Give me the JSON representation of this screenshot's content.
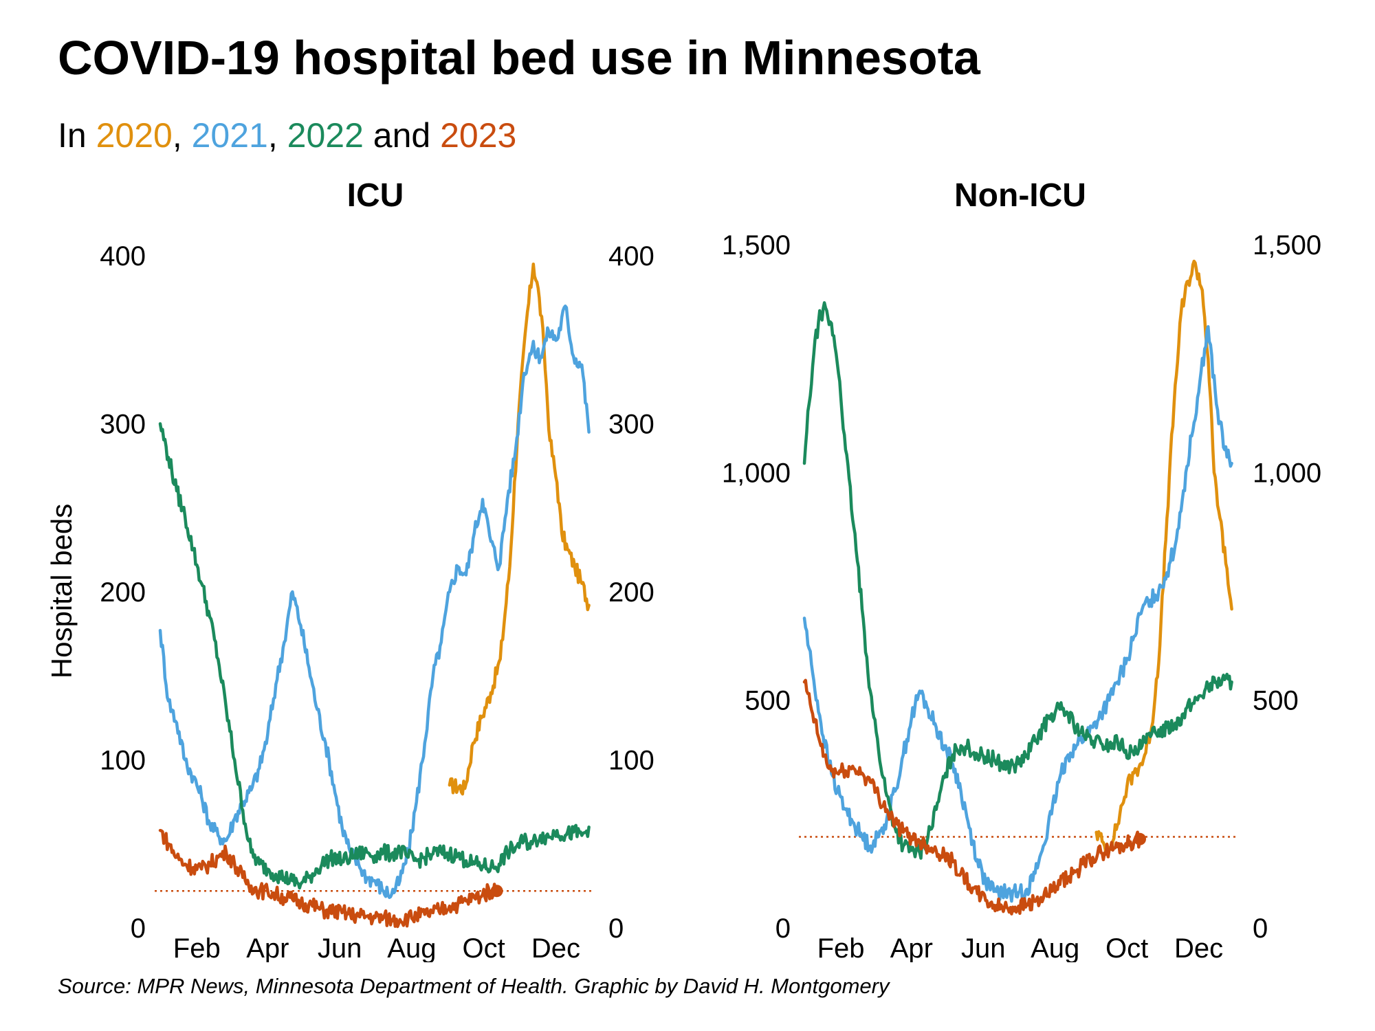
{
  "title": "COVID-19 hospital bed use in Minnesota",
  "subtitle": {
    "prefix": "In ",
    "sep1": ", ",
    "sep2": ", ",
    "and_text": " and ",
    "year_2020": "2020",
    "year_2021": "2021",
    "year_2022": "2022",
    "year_2023": "2023"
  },
  "source": "Source: MPR News, Minnesota Department of Health. Graphic by David H. Montgomery",
  "colors": {
    "2020": "#E0900E",
    "2021": "#4EA3DE",
    "2022": "#1B8A5C",
    "2023": "#C94C0F"
  },
  "chart_data": [
    {
      "type": "line",
      "title": "ICU",
      "ylabel": "Hospital beds",
      "ylim": [
        0,
        400
      ],
      "yticks": [
        0,
        100,
        200,
        300,
        400
      ],
      "ytick_labels": [
        "0",
        "100",
        "200",
        "300",
        "400"
      ],
      "xlim": [
        0,
        365
      ],
      "xticks": [
        {
          "day": 31,
          "label": "Feb"
        },
        {
          "day": 91,
          "label": "Apr"
        },
        {
          "day": 152,
          "label": "Jun"
        },
        {
          "day": 213,
          "label": "Aug"
        },
        {
          "day": 274,
          "label": "Oct"
        },
        {
          "day": 335,
          "label": "Dec"
        }
      ],
      "reference_line": {
        "value": 22,
        "color": "#C94C0F"
      },
      "series": [
        {
          "name": "2020",
          "x": [
            245,
            258,
            265,
            272,
            280,
            288,
            296,
            303,
            310,
            316,
            321,
            325,
            330,
            336,
            340,
            345,
            351,
            357,
            363
          ],
          "y": [
            85,
            83,
            110,
            125,
            140,
            160,
            215,
            300,
            360,
            395,
            375,
            345,
            290,
            265,
            235,
            225,
            215,
            205,
            192
          ]
        },
        {
          "name": "2021",
          "x": [
            0,
            7,
            14,
            21,
            28,
            35,
            42,
            49,
            56,
            63,
            70,
            77,
            84,
            91,
            98,
            105,
            112,
            119,
            126,
            133,
            140,
            147,
            154,
            161,
            168,
            175,
            182,
            189,
            196,
            203,
            210,
            217,
            224,
            231,
            238,
            245,
            252,
            259,
            266,
            273,
            280,
            287,
            294,
            301,
            308,
            315,
            322,
            329,
            336,
            343,
            350,
            357,
            363
          ],
          "y": [
            177,
            135,
            122,
            100,
            90,
            78,
            62,
            55,
            52,
            65,
            75,
            82,
            95,
            115,
            145,
            170,
            200,
            180,
            155,
            130,
            110,
            85,
            60,
            45,
            38,
            30,
            28,
            22,
            20,
            28,
            45,
            75,
            110,
            150,
            170,
            200,
            215,
            210,
            235,
            255,
            230,
            215,
            255,
            285,
            330,
            345,
            340,
            355,
            350,
            370,
            340,
            335,
            295
          ]
        },
        {
          "name": "2022",
          "x": [
            0,
            7,
            14,
            21,
            28,
            35,
            42,
            49,
            56,
            63,
            70,
            77,
            84,
            91,
            98,
            105,
            112,
            119,
            126,
            133,
            140,
            147,
            154,
            161,
            168,
            175,
            182,
            189,
            196,
            203,
            210,
            217,
            224,
            231,
            238,
            245,
            252,
            259,
            266,
            273,
            280,
            287,
            294,
            301,
            308,
            315,
            322,
            329,
            336,
            343,
            350,
            357,
            363
          ],
          "y": [
            300,
            280,
            260,
            245,
            225,
            205,
            185,
            160,
            130,
            100,
            70,
            45,
            38,
            35,
            32,
            30,
            28,
            26,
            30,
            35,
            40,
            42,
            40,
            42,
            44,
            45,
            43,
            45,
            44,
            46,
            42,
            40,
            42,
            44,
            45,
            44,
            43,
            40,
            38,
            37,
            36,
            38,
            45,
            48,
            52,
            50,
            55,
            54,
            58,
            55,
            57,
            55,
            60
          ]
        },
        {
          "name": "2023",
          "x": [
            0,
            7,
            14,
            21,
            28,
            35,
            42,
            49,
            56,
            63,
            70,
            77,
            84,
            91,
            98,
            105,
            112,
            119,
            126,
            133,
            140,
            147,
            154,
            161,
            168,
            175,
            182,
            189,
            196,
            203,
            210,
            217,
            224,
            231,
            238,
            245,
            252,
            259,
            266,
            273,
            280,
            285
          ],
          "y": [
            58,
            50,
            42,
            38,
            36,
            35,
            38,
            42,
            45,
            38,
            30,
            25,
            22,
            22,
            20,
            18,
            17,
            15,
            14,
            12,
            10,
            10,
            9,
            8,
            7,
            7,
            6,
            6,
            5,
            5,
            6,
            7,
            8,
            9,
            11,
            13,
            14,
            16,
            18,
            20,
            22,
            22
          ]
        }
      ]
    },
    {
      "type": "line",
      "title": "Non-ICU",
      "ylabel": "",
      "ylim": [
        0,
        1500
      ],
      "yticks": [
        0,
        500,
        1000,
        1500
      ],
      "ytick_labels": [
        "0",
        "500",
        "1,000",
        "1,500"
      ],
      "xlim": [
        0,
        365
      ],
      "xticks": [
        {
          "day": 31,
          "label": "Feb"
        },
        {
          "day": 91,
          "label": "Apr"
        },
        {
          "day": 152,
          "label": "Jun"
        },
        {
          "day": 213,
          "label": "Aug"
        },
        {
          "day": 274,
          "label": "Oct"
        },
        {
          "day": 335,
          "label": "Dec"
        }
      ],
      "reference_line": {
        "value": 200,
        "color": "#C94C0F"
      },
      "series": [
        {
          "name": "2020",
          "x": [
            248,
            255,
            262,
            268,
            274,
            280,
            288,
            295,
            302,
            308,
            314,
            320,
            326,
            332,
            338,
            343,
            348,
            353,
            358,
            363
          ],
          "y": [
            210,
            180,
            190,
            250,
            310,
            340,
            370,
            440,
            620,
            900,
            1150,
            1350,
            1420,
            1460,
            1400,
            1250,
            1000,
            900,
            800,
            700
          ]
        },
        {
          "name": "2021",
          "x": [
            0,
            7,
            14,
            21,
            28,
            35,
            42,
            49,
            56,
            63,
            70,
            77,
            84,
            91,
            98,
            105,
            112,
            119,
            126,
            133,
            140,
            147,
            154,
            161,
            168,
            175,
            182,
            189,
            196,
            203,
            210,
            217,
            224,
            231,
            238,
            245,
            252,
            259,
            266,
            273,
            280,
            287,
            294,
            301,
            308,
            315,
            322,
            329,
            336,
            343,
            350,
            357,
            363
          ],
          "y": [
            680,
            560,
            450,
            360,
            300,
            260,
            230,
            200,
            180,
            200,
            240,
            300,
            380,
            460,
            520,
            480,
            440,
            400,
            360,
            300,
            220,
            150,
            100,
            80,
            78,
            75,
            78,
            85,
            120,
            180,
            250,
            330,
            380,
            400,
            420,
            440,
            470,
            500,
            540,
            580,
            640,
            700,
            720,
            740,
            780,
            840,
            960,
            1080,
            1200,
            1320,
            1150,
            1050,
            1020
          ]
        },
        {
          "name": "2022",
          "x": [
            0,
            4,
            8,
            12,
            16,
            20,
            25,
            30,
            35,
            42,
            49,
            56,
            63,
            70,
            77,
            84,
            91,
            98,
            105,
            112,
            119,
            126,
            133,
            140,
            147,
            154,
            161,
            168,
            175,
            182,
            189,
            196,
            203,
            210,
            217,
            224,
            231,
            238,
            245,
            252,
            259,
            266,
            273,
            280,
            287,
            294,
            301,
            308,
            315,
            322,
            329,
            336,
            343,
            350,
            357,
            363
          ],
          "y": [
            1020,
            1150,
            1260,
            1330,
            1360,
            1340,
            1300,
            1200,
            1050,
            880,
            700,
            520,
            390,
            290,
            220,
            180,
            170,
            165,
            200,
            260,
            330,
            380,
            400,
            395,
            380,
            375,
            370,
            360,
            355,
            360,
            380,
            410,
            440,
            470,
            480,
            470,
            440,
            420,
            410,
            405,
            400,
            410,
            390,
            380,
            400,
            420,
            435,
            440,
            450,
            470,
            490,
            510,
            530,
            540,
            545,
            540
          ]
        },
        {
          "name": "2023",
          "x": [
            0,
            7,
            14,
            21,
            28,
            35,
            42,
            49,
            56,
            63,
            70,
            77,
            84,
            91,
            98,
            105,
            112,
            119,
            126,
            133,
            140,
            147,
            154,
            161,
            168,
            175,
            182,
            189,
            196,
            203,
            210,
            217,
            224,
            231,
            238,
            245,
            252,
            259,
            266,
            273,
            280,
            285
          ],
          "y": [
            540,
            470,
            400,
            350,
            340,
            345,
            350,
            340,
            320,
            290,
            260,
            230,
            210,
            200,
            190,
            180,
            170,
            160,
            145,
            120,
            95,
            75,
            60,
            50,
            45,
            45,
            48,
            52,
            58,
            65,
            80,
            95,
            110,
            125,
            140,
            155,
            165,
            172,
            178,
            185,
            190,
            195
          ]
        }
      ]
    }
  ]
}
